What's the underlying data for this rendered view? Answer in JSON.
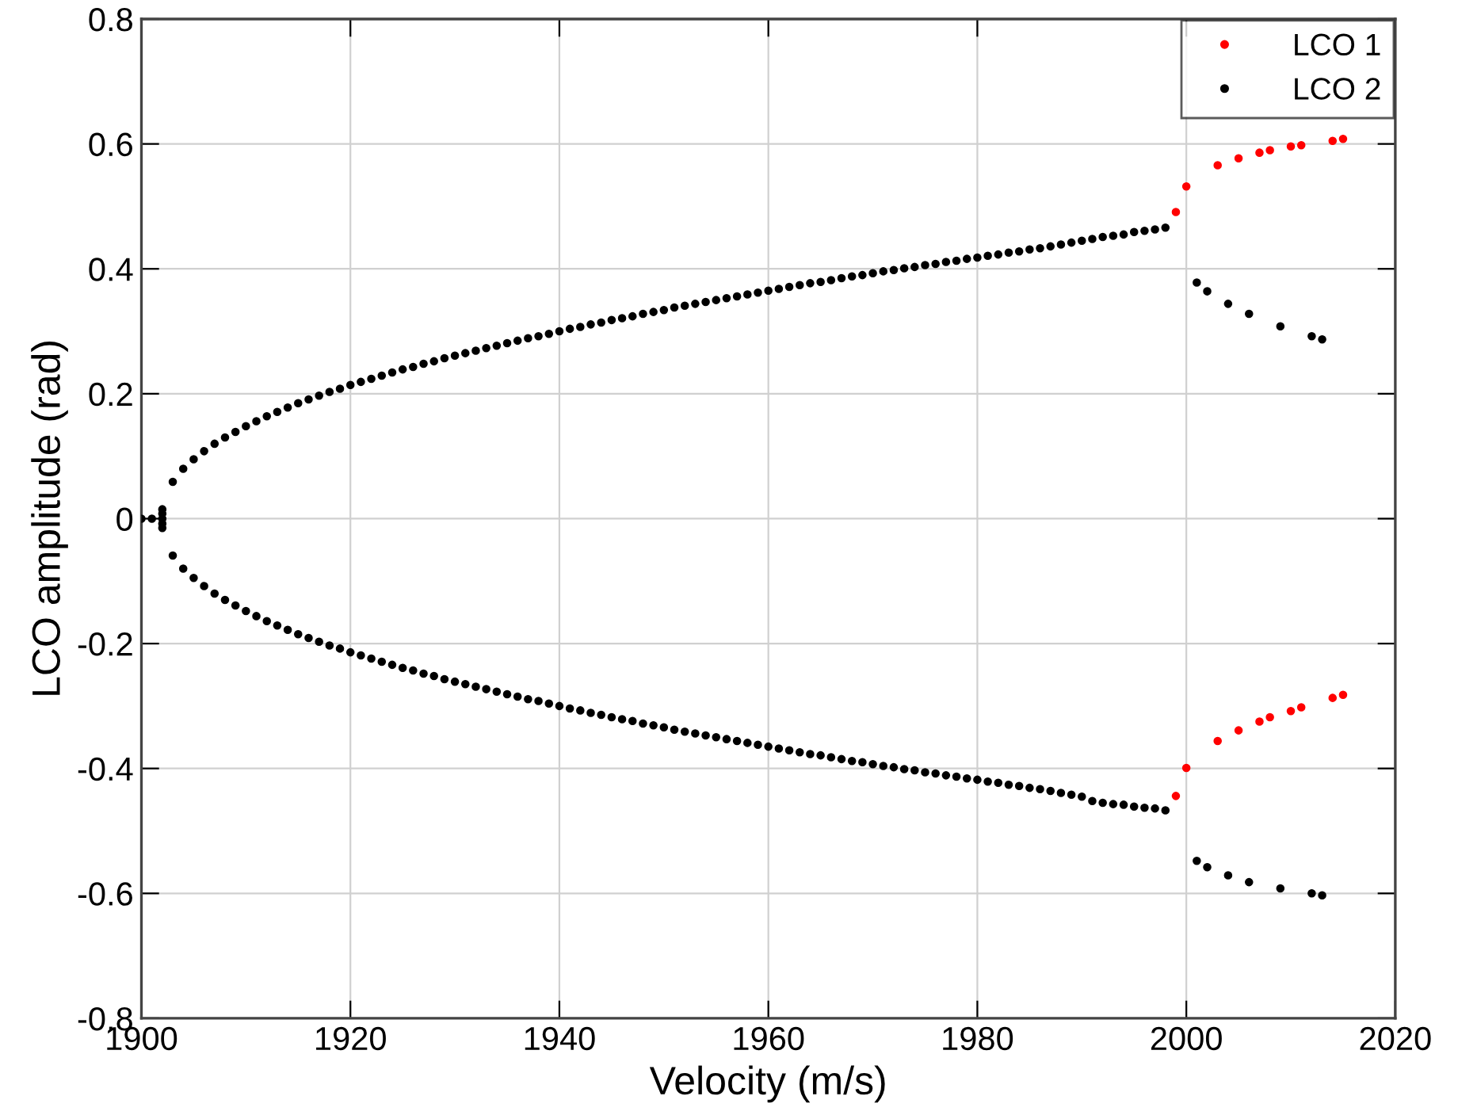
{
  "chart_data": {
    "type": "scatter",
    "xlabel": "Velocity (m/s)",
    "ylabel": "LCO amplitude (rad)",
    "xlim": [
      1900,
      2020
    ],
    "xticks": [
      1900,
      1920,
      1940,
      1960,
      1980,
      2000,
      2020
    ],
    "ylim": [
      -0.8,
      0.8
    ],
    "yticks": [
      -0.8,
      -0.6,
      -0.4,
      -0.2,
      0,
      0.2,
      0.4,
      0.6,
      0.8
    ],
    "grid": true,
    "legend": "top right",
    "marker": "circle",
    "series": [
      {
        "name": "LCO 1",
        "color": "#ff0000",
        "x": [
          1999,
          2000,
          2003,
          2005,
          2007,
          2008,
          2010,
          2011,
          2014,
          2015,
          1999,
          2000,
          2003,
          2005,
          2007,
          2008,
          2010,
          2011,
          2014,
          2015
        ],
        "values": [
          0.491,
          0.532,
          0.566,
          0.577,
          0.586,
          0.59,
          0.596,
          0.598,
          0.605,
          0.608,
          -0.444,
          -0.399,
          -0.356,
          -0.339,
          -0.325,
          -0.318,
          -0.308,
          -0.302,
          -0.287,
          -0.282
        ]
      },
      {
        "name": "LCO 2",
        "color": "#000000",
        "x": [
          1900,
          1901,
          1902,
          1902,
          1902,
          1902,
          1902,
          1903,
          1904,
          1905,
          1906,
          1907,
          1908,
          1909,
          1910,
          1911,
          1912,
          1913,
          1914,
          1915,
          1916,
          1917,
          1918,
          1919,
          1920,
          1921,
          1922,
          1923,
          1924,
          1925,
          1926,
          1927,
          1928,
          1929,
          1930,
          1931,
          1932,
          1933,
          1934,
          1935,
          1936,
          1937,
          1938,
          1939,
          1940,
          1941,
          1942,
          1943,
          1944,
          1945,
          1946,
          1947,
          1948,
          1949,
          1950,
          1951,
          1952,
          1953,
          1954,
          1955,
          1956,
          1957,
          1958,
          1959,
          1960,
          1961,
          1962,
          1963,
          1964,
          1965,
          1966,
          1967,
          1968,
          1969,
          1970,
          1971,
          1972,
          1973,
          1974,
          1975,
          1976,
          1977,
          1978,
          1979,
          1980,
          1981,
          1982,
          1983,
          1984,
          1985,
          1986,
          1987,
          1988,
          1989,
          1990,
          1991,
          1992,
          1993,
          1994,
          1995,
          1996,
          1997,
          1998,
          2001,
          2002,
          2004,
          2006,
          2009,
          2012,
          2013,
          1903,
          1904,
          1905,
          1906,
          1907,
          1908,
          1909,
          1910,
          1911,
          1912,
          1913,
          1914,
          1915,
          1916,
          1917,
          1918,
          1919,
          1920,
          1921,
          1922,
          1923,
          1924,
          1925,
          1926,
          1927,
          1928,
          1929,
          1930,
          1931,
          1932,
          1933,
          1934,
          1935,
          1936,
          1937,
          1938,
          1939,
          1940,
          1941,
          1942,
          1943,
          1944,
          1945,
          1946,
          1947,
          1948,
          1949,
          1950,
          1951,
          1952,
          1953,
          1954,
          1955,
          1956,
          1957,
          1958,
          1959,
          1960,
          1961,
          1962,
          1963,
          1964,
          1965,
          1966,
          1967,
          1968,
          1969,
          1970,
          1971,
          1972,
          1973,
          1974,
          1975,
          1976,
          1977,
          1978,
          1979,
          1980,
          1981,
          1982,
          1983,
          1984,
          1985,
          1986,
          1987,
          1988,
          1989,
          1990,
          1991,
          1992,
          1993,
          1994,
          1995,
          1996,
          1997,
          1998,
          2001,
          2002,
          2004,
          2006,
          2009,
          2012,
          2013
        ],
        "values": [
          0,
          0,
          -0.015,
          -0.008,
          0,
          0.008,
          0.015,
          0.059,
          0.08,
          0.095,
          0.108,
          0.12,
          0.13,
          0.139,
          0.148,
          0.156,
          0.164,
          0.171,
          0.178,
          0.185,
          0.191,
          0.197,
          0.203,
          0.208,
          0.214,
          0.219,
          0.224,
          0.229,
          0.234,
          0.239,
          0.243,
          0.248,
          0.252,
          0.257,
          0.261,
          0.265,
          0.269,
          0.273,
          0.277,
          0.281,
          0.285,
          0.289,
          0.292,
          0.296,
          0.3,
          0.304,
          0.307,
          0.311,
          0.314,
          0.318,
          0.321,
          0.324,
          0.328,
          0.331,
          0.334,
          0.338,
          0.341,
          0.344,
          0.347,
          0.35,
          0.353,
          0.356,
          0.359,
          0.362,
          0.365,
          0.368,
          0.371,
          0.374,
          0.377,
          0.379,
          0.382,
          0.385,
          0.388,
          0.39,
          0.393,
          0.396,
          0.398,
          0.401,
          0.403,
          0.406,
          0.408,
          0.411,
          0.413,
          0.416,
          0.418,
          0.421,
          0.423,
          0.426,
          0.428,
          0.431,
          0.433,
          0.436,
          0.439,
          0.442,
          0.445,
          0.448,
          0.451,
          0.453,
          0.455,
          0.459,
          0.461,
          0.463,
          0.466,
          0.378,
          0.364,
          0.344,
          0.328,
          0.308,
          0.292,
          0.287,
          -0.059,
          -0.08,
          -0.095,
          -0.108,
          -0.12,
          -0.13,
          -0.139,
          -0.148,
          -0.156,
          -0.164,
          -0.171,
          -0.178,
          -0.185,
          -0.191,
          -0.197,
          -0.203,
          -0.208,
          -0.214,
          -0.219,
          -0.224,
          -0.229,
          -0.234,
          -0.239,
          -0.243,
          -0.248,
          -0.252,
          -0.257,
          -0.261,
          -0.265,
          -0.269,
          -0.273,
          -0.277,
          -0.281,
          -0.285,
          -0.289,
          -0.292,
          -0.296,
          -0.3,
          -0.304,
          -0.307,
          -0.311,
          -0.314,
          -0.318,
          -0.321,
          -0.324,
          -0.328,
          -0.331,
          -0.334,
          -0.338,
          -0.341,
          -0.344,
          -0.347,
          -0.35,
          -0.353,
          -0.356,
          -0.359,
          -0.362,
          -0.365,
          -0.368,
          -0.371,
          -0.374,
          -0.377,
          -0.379,
          -0.382,
          -0.385,
          -0.388,
          -0.39,
          -0.393,
          -0.396,
          -0.398,
          -0.401,
          -0.403,
          -0.406,
          -0.408,
          -0.411,
          -0.413,
          -0.416,
          -0.418,
          -0.421,
          -0.423,
          -0.426,
          -0.428,
          -0.431,
          -0.433,
          -0.436,
          -0.439,
          -0.442,
          -0.445,
          -0.452,
          -0.455,
          -0.457,
          -0.458,
          -0.461,
          -0.463,
          -0.464,
          -0.467,
          -0.548,
          -0.558,
          -0.571,
          -0.582,
          -0.592,
          -0.6,
          -0.603
        ]
      }
    ]
  }
}
